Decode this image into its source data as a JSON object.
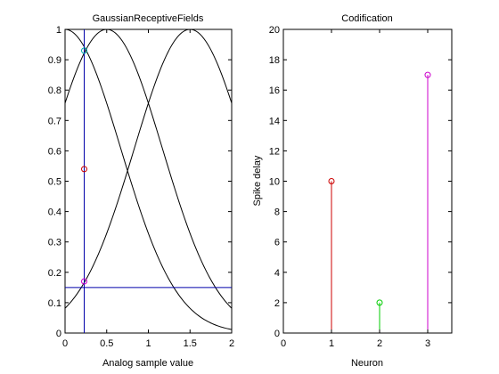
{
  "chart_data": [
    {
      "type": "line",
      "title": "GaussianReceptiveFields",
      "xlabel": "Analog sample value",
      "ylabel": "",
      "xlim": [
        0,
        2
      ],
      "ylim": [
        0,
        1
      ],
      "xticks": [
        "0",
        "0.5",
        "1",
        "1.5",
        "2"
      ],
      "yticks": [
        "0",
        "0.1",
        "0.2",
        "0.3",
        "0.4",
        "0.5",
        "0.6",
        "0.7",
        "0.8",
        "0.9",
        "1"
      ],
      "grid": false,
      "series": [
        {
          "centre": 0.0,
          "width": 0.67,
          "color": "#000000"
        },
        {
          "centre": 0.5,
          "width": 0.67,
          "color": "#000000"
        },
        {
          "centre": 1.5,
          "width": 0.67,
          "color": "#000000"
        }
      ],
      "vertical_line": {
        "x": 0.23,
        "color": "#0000aa"
      },
      "horizontal_line": {
        "y": 0.15,
        "color": "#0000aa"
      },
      "markers": [
        {
          "x": 0.23,
          "y": 0.93,
          "color": "#00aaaa"
        },
        {
          "x": 0.23,
          "y": 0.54,
          "color": "#cc0000"
        },
        {
          "x": 0.23,
          "y": 0.17,
          "color": "#cc00cc"
        }
      ]
    },
    {
      "type": "stem",
      "title": "Codification",
      "xlabel": "Neuron",
      "ylabel": "Spike delay",
      "xlim": [
        0,
        3.5
      ],
      "ylim": [
        0,
        20
      ],
      "xticks": [
        "0",
        "1",
        "2",
        "3"
      ],
      "yticks": [
        "0",
        "2",
        "4",
        "6",
        "8",
        "10",
        "12",
        "14",
        "16",
        "18",
        "20"
      ],
      "grid": false,
      "points": [
        {
          "x": 1,
          "y": 10,
          "color": "#cc0000"
        },
        {
          "x": 2,
          "y": 2,
          "color": "#00cc00"
        },
        {
          "x": 3,
          "y": 17,
          "color": "#cc00cc"
        }
      ]
    }
  ]
}
